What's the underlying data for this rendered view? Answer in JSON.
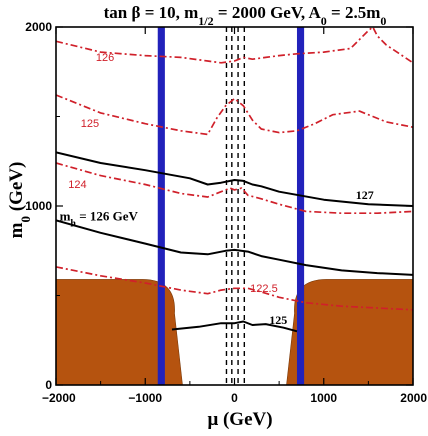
{
  "chart_data": {
    "type": "line",
    "title": {
      "parts": [
        {
          "t": "tan "
        },
        {
          "t": "β"
        },
        {
          "t": " = 10, m"
        },
        {
          "t": "1/2",
          "sub": true
        },
        {
          "t": " = 2000 GeV, A"
        },
        {
          "t": "0",
          "sub": true
        },
        {
          "t": " = 2.5m"
        },
        {
          "t": "0",
          "sub": true
        }
      ]
    },
    "xlabel": "μ  (GeV)",
    "ylabel": {
      "parts": [
        {
          "t": "m"
        },
        {
          "t": "0",
          "sub": true
        },
        {
          "t": " (GeV)"
        }
      ]
    },
    "xlim": [
      -2000,
      2000
    ],
    "ylim": [
      0,
      2000
    ],
    "xticks": [
      -2000,
      -1000,
      0,
      1000,
      2000
    ],
    "xtick_labels": [
      "−2000",
      "−1000",
      "0",
      "1000",
      "2000"
    ],
    "yticks": [
      0,
      1000,
      2000
    ],
    "ytick_labels": [
      "0",
      "1000",
      "2000"
    ],
    "colors": {
      "black_contour": "#000000",
      "red_contour": "#d0202a",
      "blue_band": "#2222bb",
      "brown_region": "#b5530f",
      "dashed_lines": "#000000"
    },
    "series": [
      {
        "style": "black_contour",
        "x": [
          -2000,
          -1500,
          -1000,
          -500,
          -300,
          -150,
          0,
          100,
          200,
          300,
          500,
          1000,
          1500,
          2000
        ],
        "y": [
          1300,
          1240,
          1200,
          1155,
          1120,
          1130,
          1145,
          1140,
          1120,
          1110,
          1080,
          1035,
          1010,
          1000
        ]
      },
      {
        "style": "black_contour",
        "x": [
          -2000,
          -1500,
          -1000,
          -600,
          -300,
          -100,
          0,
          150,
          300,
          500,
          800,
          1200,
          1600,
          2000
        ],
        "y": [
          920,
          850,
          790,
          740,
          730,
          750,
          755,
          745,
          720,
          700,
          670,
          640,
          625,
          615
        ]
      },
      {
        "style": "black_contour",
        "x": [
          -700,
          -400,
          -150,
          0,
          100,
          200,
          350,
          550,
          700
        ],
        "y": [
          310,
          325,
          345,
          345,
          355,
          335,
          340,
          320,
          300
        ]
      },
      {
        "style": "red_contour",
        "x": [
          -2000,
          -1500,
          -1000,
          -600,
          -300,
          -150,
          0,
          100,
          200,
          350,
          500,
          700,
          1000,
          1300,
          1500,
          1550,
          1600,
          1700,
          2000
        ],
        "y": [
          1920,
          1860,
          1840,
          1830,
          1810,
          1800,
          1810,
          1830,
          1820,
          1830,
          1840,
          1850,
          1860,
          1880,
          1980,
          2000,
          1950,
          1900,
          1800
        ]
      },
      {
        "style": "red_contour",
        "x": [
          -2000,
          -1500,
          -1000,
          -600,
          -300,
          -200,
          -100,
          0,
          100,
          200,
          300,
          500,
          700,
          900,
          1100,
          1400,
          1700,
          2000
        ],
        "y": [
          1620,
          1520,
          1460,
          1420,
          1400,
          1490,
          1560,
          1600,
          1560,
          1480,
          1430,
          1410,
          1420,
          1460,
          1510,
          1530,
          1470,
          1440
        ]
      },
      {
        "style": "red_contour",
        "x": [
          -2000,
          -1500,
          -1000,
          -600,
          -300,
          -150,
          -50,
          0,
          80,
          150,
          300,
          500,
          800,
          1200,
          1600,
          2000
        ],
        "y": [
          1240,
          1170,
          1120,
          1070,
          1050,
          1080,
          1100,
          1090,
          1100,
          1060,
          1040,
          1010,
          970,
          960,
          960,
          970
        ]
      },
      {
        "style": "red_contour",
        "x": [
          -2000,
          -1500,
          -1000,
          -600,
          -300,
          -150,
          0,
          150,
          300,
          500,
          800,
          1200,
          1600,
          2000
        ],
        "y": [
          660,
          610,
          570,
          530,
          510,
          530,
          540,
          540,
          520,
          490,
          460,
          440,
          430,
          420
        ]
      }
    ],
    "bands": [
      {
        "style": "blue_band",
        "x_range": [
          -860,
          -780
        ]
      },
      {
        "style": "blue_band",
        "x_range": [
          700,
          780
        ]
      }
    ],
    "dashed_verticals": [
      -90,
      -30,
      40,
      110
    ],
    "excluded_regions": [
      {
        "style": "brown_region",
        "side": "left",
        "x_range": [
          -2000,
          -650
        ],
        "y_max": 590
      },
      {
        "style": "brown_region",
        "side": "right",
        "x_range": [
          650,
          2000
        ],
        "y_max": 590
      }
    ],
    "labels": [
      {
        "text": "126",
        "x": -1450,
        "y": 1810,
        "style": "red_contour"
      },
      {
        "text": "125",
        "x": -1620,
        "y": 1440,
        "style": "red_contour"
      },
      {
        "text": "124",
        "x": -1760,
        "y": 1100,
        "style": "red_contour"
      },
      {
        "text": "122.5",
        "x": 330,
        "y": 520,
        "style": "red_contour"
      },
      {
        "text": "127",
        "x": 1460,
        "y": 1040,
        "style": "black_contour"
      },
      {
        "text": "125",
        "x": 490,
        "y": 340,
        "style": "black_contour"
      }
    ],
    "mh_label": {
      "parts": [
        {
          "t": "m"
        },
        {
          "t": "h",
          "sub": true
        },
        {
          "t": " = 126 GeV"
        }
      ],
      "x": -1960,
      "y": 920
    }
  }
}
